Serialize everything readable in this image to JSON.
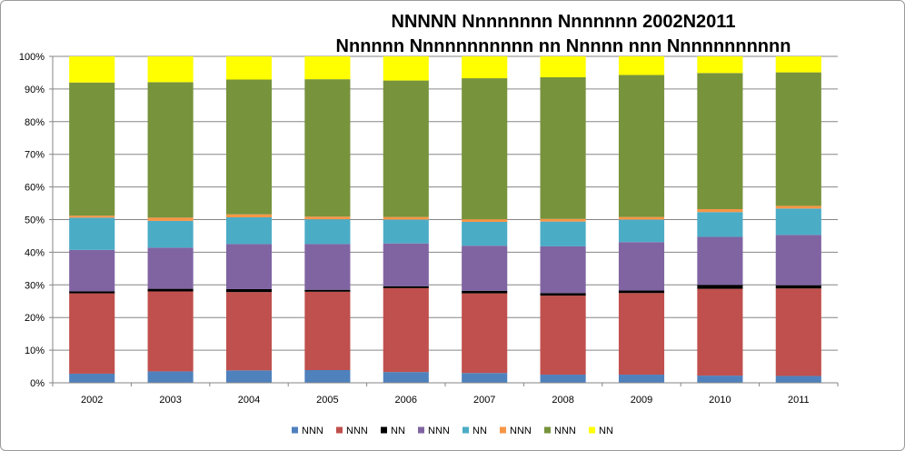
{
  "chart_data": {
    "type": "bar",
    "stacked": true,
    "percent_stacked": true,
    "title": "NNNNN Nnnnnnnn Nnnnnnn 2002N2011",
    "subtitle": "Nnnnnn Nnnnnnnnnnn nn Nnnnn nnn Nnnnnnnnnnn",
    "categories": [
      "2002",
      "2003",
      "2004",
      "2005",
      "2006",
      "2007",
      "2008",
      "2009",
      "2010",
      "2011"
    ],
    "y_tick_labels": [
      "0%",
      "10%",
      "20%",
      "30%",
      "40%",
      "50%",
      "60%",
      "70%",
      "80%",
      "90%",
      "100%"
    ],
    "ylim": [
      0,
      100
    ],
    "grid": true,
    "legend_position": "bottom",
    "series": [
      {
        "name": "NNN",
        "color": "#4f81bd",
        "values": [
          2.8,
          3.5,
          3.8,
          3.9,
          3.3,
          3.0,
          2.5,
          2.5,
          2.2,
          2.1
        ]
      },
      {
        "name": "NNN",
        "color": "#c0504d",
        "values": [
          24.6,
          24.5,
          24.0,
          24.0,
          25.7,
          24.4,
          24.2,
          25.0,
          26.6,
          26.8
        ]
      },
      {
        "name": "NN",
        "color": "#000000",
        "values": [
          0.6,
          0.8,
          0.9,
          0.6,
          0.6,
          0.8,
          0.8,
          0.8,
          1.2,
          1.0
        ]
      },
      {
        "name": "NNN",
        "color": "#8064a2",
        "values": [
          12.7,
          12.6,
          13.8,
          14.0,
          13.1,
          13.8,
          14.3,
          14.8,
          14.7,
          15.4
        ]
      },
      {
        "name": "NN",
        "color": "#4bacc6",
        "values": [
          9.9,
          8.2,
          8.2,
          7.6,
          7.3,
          7.3,
          7.6,
          6.9,
          7.6,
          8.1
        ]
      },
      {
        "name": "NNN",
        "color": "#f79646",
        "values": [
          0.6,
          1.0,
          0.9,
          0.8,
          0.8,
          0.8,
          0.8,
          0.8,
          0.9,
          0.8
        ]
      },
      {
        "name": "NNN",
        "color": "#77933c",
        "values": [
          40.8,
          41.5,
          41.3,
          42.1,
          41.8,
          43.2,
          43.4,
          43.5,
          41.7,
          40.9
        ]
      },
      {
        "name": "NN",
        "color": "#ffff00",
        "values": [
          8.0,
          7.9,
          7.1,
          7.0,
          7.4,
          6.7,
          6.4,
          5.7,
          5.1,
          4.9
        ]
      }
    ]
  }
}
